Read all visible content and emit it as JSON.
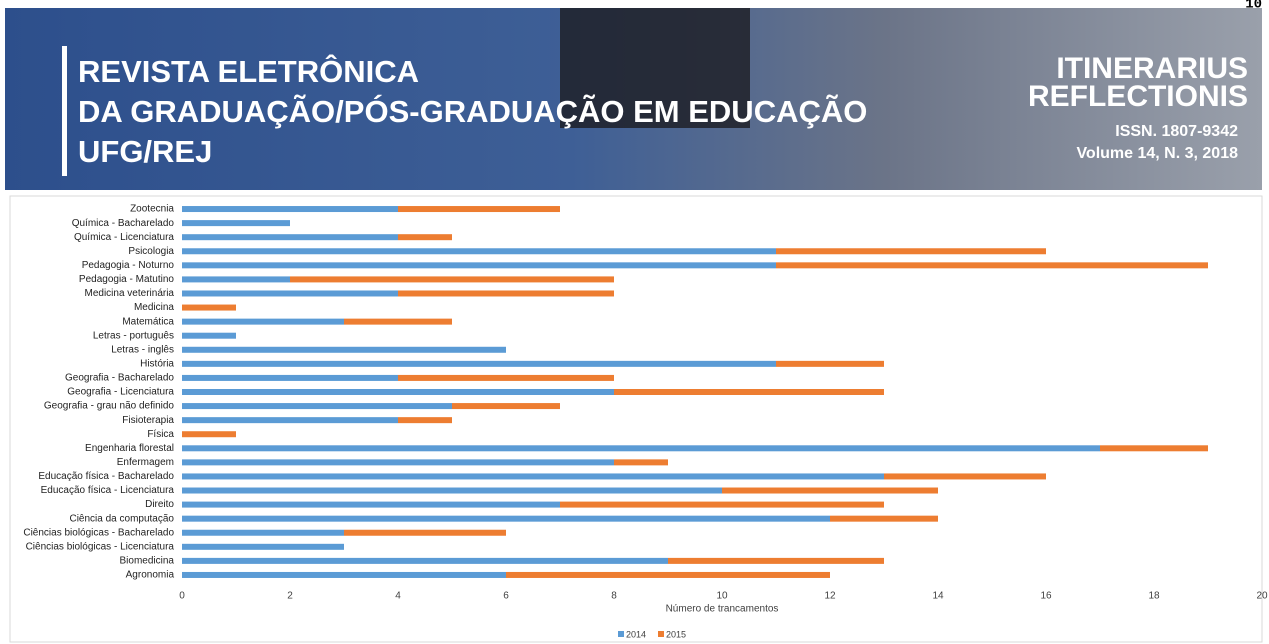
{
  "header": {
    "page_number": "10",
    "journal_lines": [
      "REVISTA ELETRÔNICA",
      "DA GRADUAÇÃO/PÓS-GRADUAÇÃO EM EDUCAÇÃO",
      "UFG/REJ"
    ],
    "brand_lines": [
      "ITINERARIUS",
      "REFLECTIONIS"
    ],
    "issn": "ISSN. 1807-9342",
    "volume": "Volume 14, N. 3, 2018"
  },
  "chart_data": {
    "type": "stacked_barh",
    "x_label": "Número de trancamentos",
    "categories": [
      "Zootecnia",
      "Química - Bacharelado",
      "Química - Licenciatura",
      "Psicologia",
      "Pedagogia - Noturno",
      "Pedagogia - Matutino",
      "Medicina veterinária",
      "Medicina",
      "Matemática",
      "Letras - português",
      "Letras - inglês",
      "História",
      "Geografia - Bacharelado",
      "Geografia - Licenciatura",
      "Geografia - grau não definido",
      "Fisioterapia",
      "Física",
      "Engenharia florestal",
      "Enfermagem",
      "Educação física - Bacharelado",
      "Educação física - Licenciatura",
      "Direito",
      "Ciência da computação",
      "Ciências biológicas - Bacharelado",
      "Ciências biológicas - Licenciatura",
      "Biomedicina",
      "Agronomia"
    ],
    "series": [
      {
        "name": "2014",
        "color": "#5b9bd5",
        "values": [
          4,
          2,
          4,
          11,
          11,
          2,
          4,
          0,
          3,
          1,
          6,
          11,
          4,
          8,
          5,
          4,
          0,
          17,
          8,
          13,
          10,
          7,
          12,
          3,
          3,
          9,
          6
        ]
      },
      {
        "name": "2015",
        "color": "#ed7d31",
        "values": [
          3,
          0,
          1,
          5,
          8,
          6,
          4,
          1,
          2,
          0,
          0,
          2,
          4,
          5,
          2,
          1,
          1,
          2,
          1,
          3,
          4,
          6,
          2,
          3,
          0,
          4,
          6
        ]
      }
    ],
    "xlim": [
      0,
      20
    ],
    "xticks": [
      0,
      2,
      4,
      6,
      8,
      10,
      12,
      14,
      16,
      18,
      20
    ],
    "grid": false,
    "legend": "bottom"
  }
}
